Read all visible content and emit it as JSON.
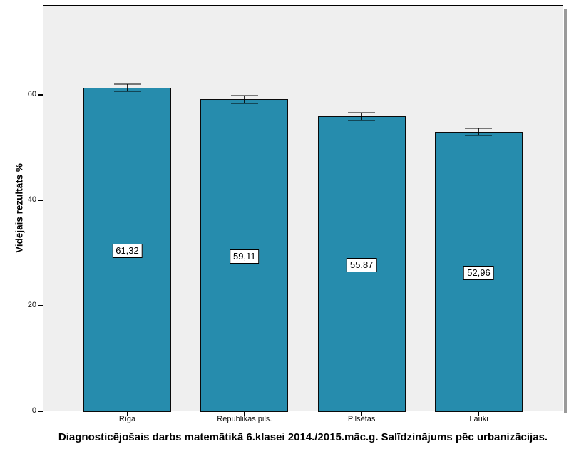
{
  "chart_data": {
    "type": "bar",
    "title": "Diagnosticējošais darbs matemātikā 6.klasei 2014./2015.māc.g. Salīdzinājums pēc urbanizācijas.",
    "ylabel": "Vidējais rezultāts %",
    "xlabel": "",
    "categories": [
      "Rīga",
      "Republikas pils.",
      "Pilsētas",
      "Lauki"
    ],
    "values": [
      61.32,
      59.11,
      55.87,
      52.96
    ],
    "value_labels": [
      "61,32",
      "59,11",
      "55,87",
      "52,96"
    ],
    "error_bars": [
      0.7,
      0.7,
      0.7,
      0.7
    ],
    "ylim": [
      0,
      77
    ],
    "yticks": [
      0,
      20,
      40,
      60
    ],
    "grid": false,
    "legend_position": "none",
    "bar_color": "#268CAD",
    "bar_border_color": "#0a0a0a",
    "plot_bg": "#EFEFEF",
    "error_bar_color": "#000000"
  }
}
